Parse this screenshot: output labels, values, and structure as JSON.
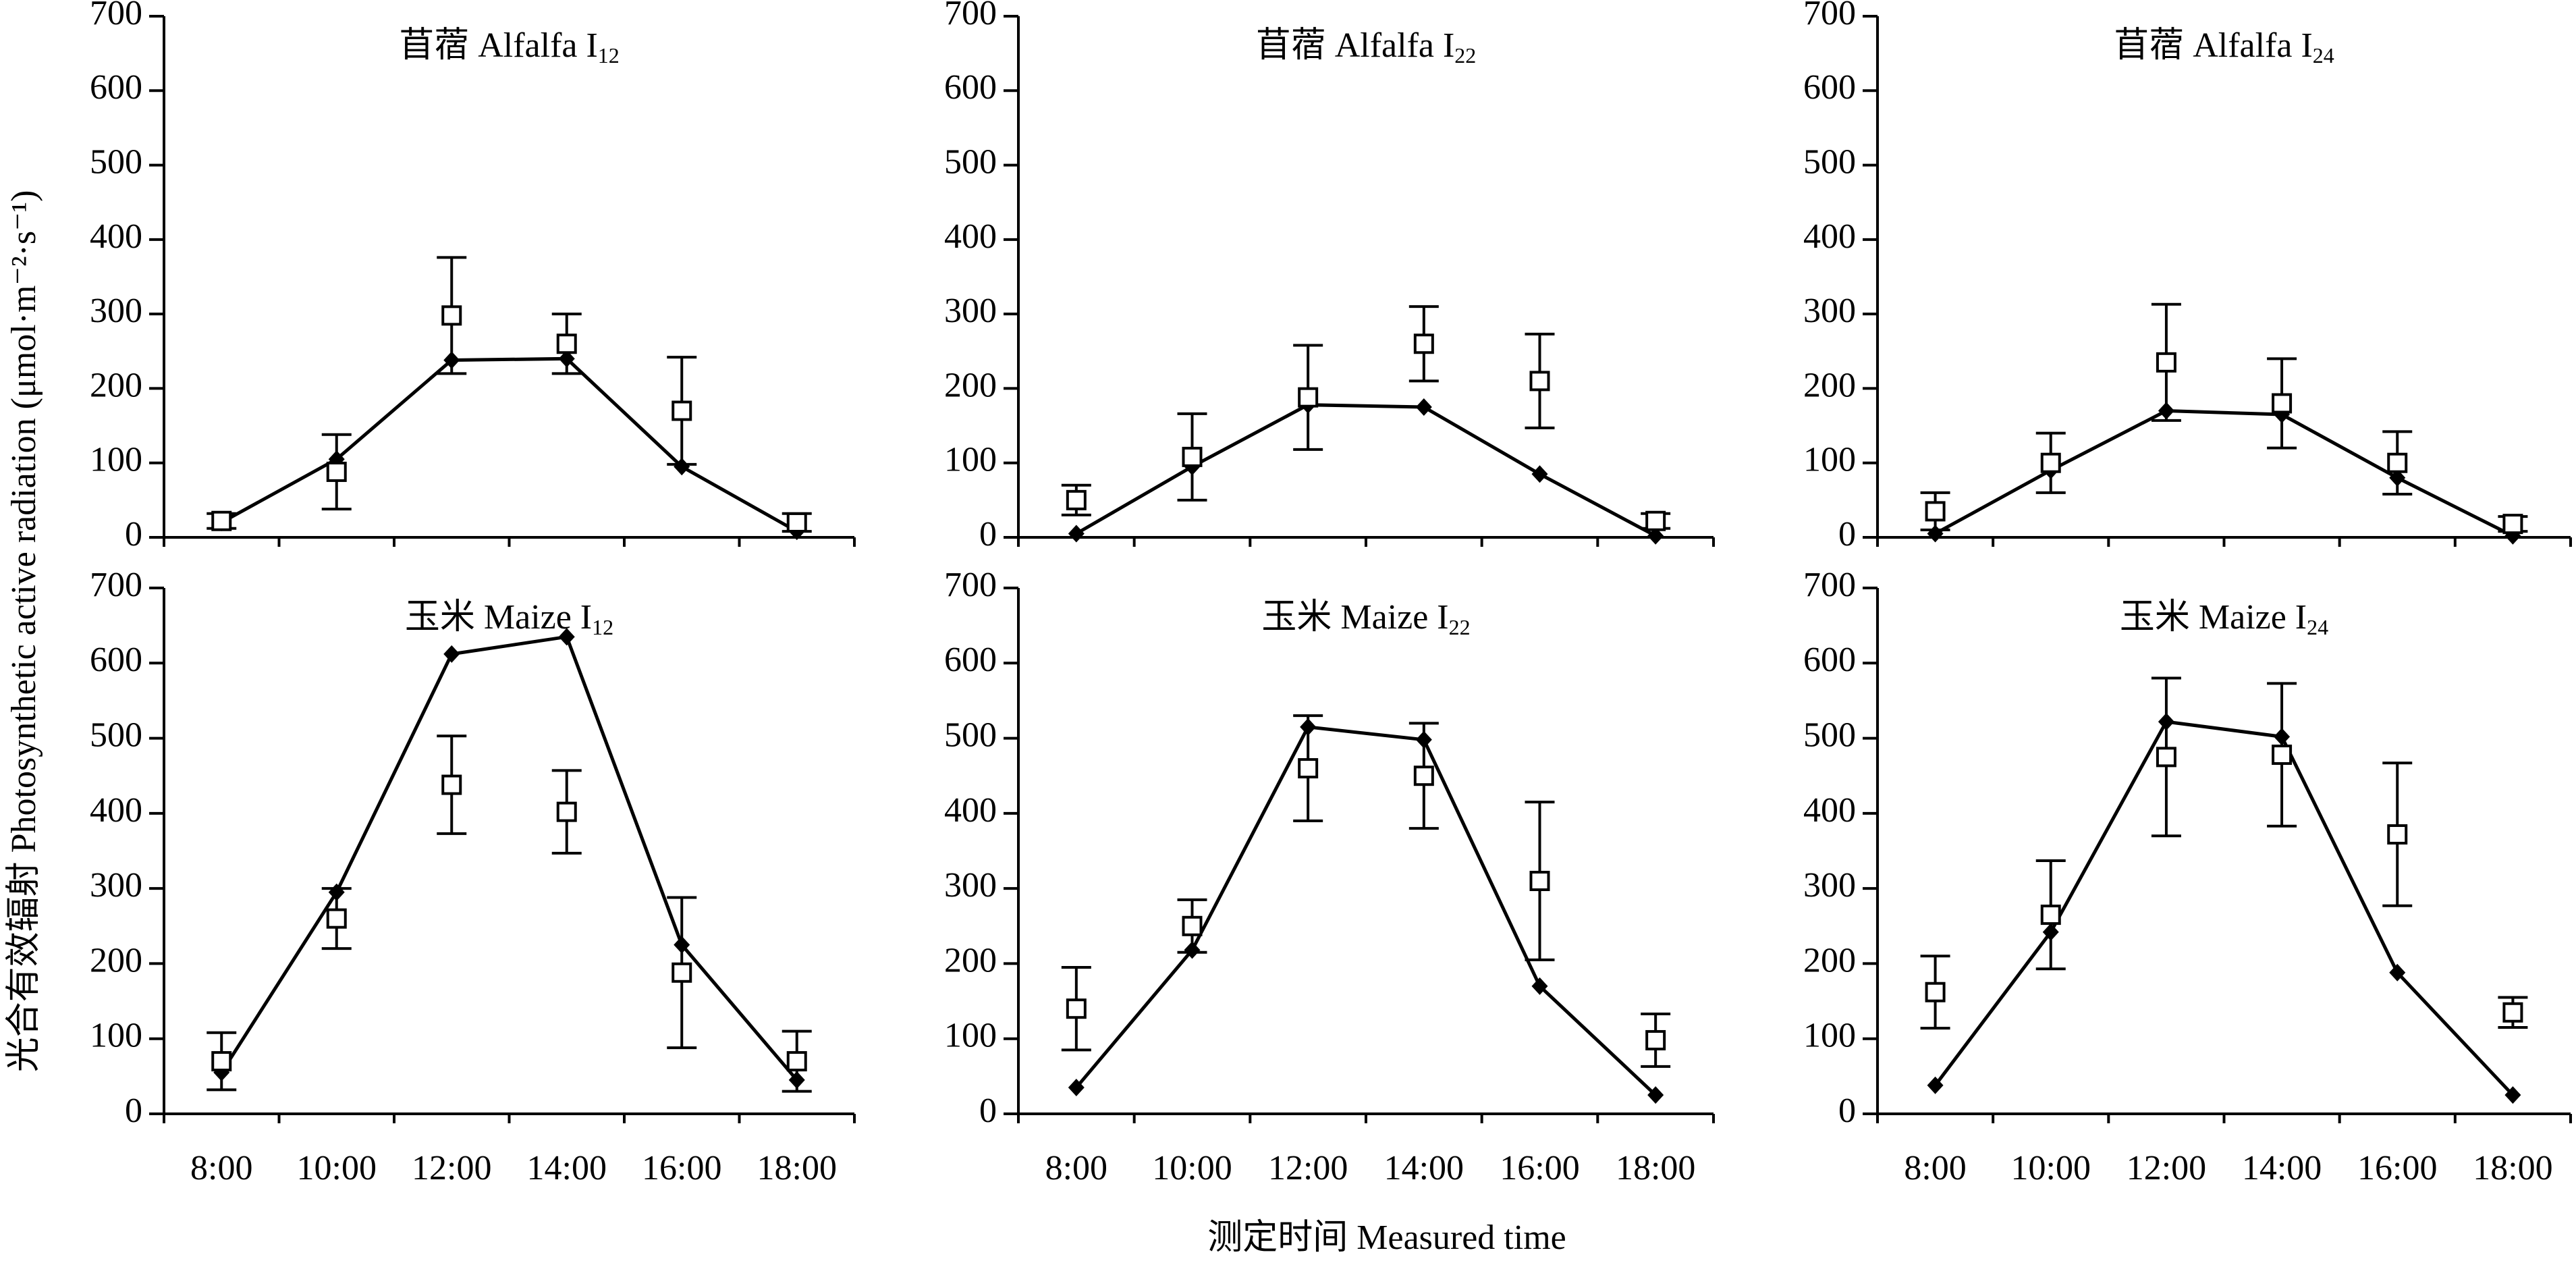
{
  "ylabel": "光合有效辐射 Photosynthetic active radiation (μmol·m⁻²·s⁻¹)",
  "xlabel": "测定时间 Measured time",
  "chart_data": [
    {
      "type": "line",
      "title": "苜蓿 Alfalfa I",
      "title_subscript": "12",
      "categories": [
        null,
        null,
        null,
        null,
        null,
        null
      ],
      "ylim": [
        0,
        700
      ],
      "yticks": [
        0,
        100,
        200,
        300,
        400,
        500,
        600,
        700
      ],
      "grid": false,
      "series": [
        {
          "color": "#000000",
          "marker": "diamond",
          "line": true,
          "values": [
            20,
            105,
            238,
            240,
            95,
            8
          ]
        },
        {
          "color": "#000000",
          "marker": "square",
          "line": false,
          "values": [
            22,
            88,
            298,
            260,
            170,
            20
          ],
          "errors": [
            10,
            50,
            78,
            40,
            72,
            12
          ]
        }
      ]
    },
    {
      "type": "line",
      "title": "苜蓿 Alfalfa I",
      "title_subscript": "22",
      "categories": [
        null,
        null,
        null,
        null,
        null,
        null
      ],
      "ylim": [
        0,
        700
      ],
      "yticks": [
        0,
        100,
        200,
        300,
        400,
        500,
        600,
        700
      ],
      "grid": false,
      "series": [
        {
          "color": "#000000",
          "marker": "diamond",
          "line": true,
          "values": [
            5,
            95,
            178,
            175,
            85,
            2
          ]
        },
        {
          "color": "#000000",
          "marker": "square",
          "line": false,
          "values": [
            50,
            108,
            188,
            260,
            210,
            22
          ],
          "errors": [
            20,
            58,
            70,
            50,
            63,
            10
          ]
        }
      ]
    },
    {
      "type": "line",
      "title": "苜蓿 Alfalfa I",
      "title_subscript": "24",
      "categories": [
        null,
        null,
        null,
        null,
        null,
        null
      ],
      "ylim": [
        0,
        700
      ],
      "yticks": [
        0,
        100,
        200,
        300,
        400,
        500,
        600,
        700
      ],
      "grid": false,
      "series": [
        {
          "color": "#000000",
          "marker": "diamond",
          "line": true,
          "values": [
            5,
            90,
            170,
            165,
            80,
            2
          ]
        },
        {
          "color": "#000000",
          "marker": "square",
          "line": false,
          "values": [
            35,
            100,
            235,
            180,
            100,
            18
          ],
          "errors": [
            25,
            40,
            78,
            60,
            42,
            10
          ]
        }
      ]
    },
    {
      "type": "line",
      "title": "玉米 Maize I",
      "title_subscript": "12",
      "categories": [
        "8:00",
        "10:00",
        "12:00",
        "14:00",
        "16:00",
        "18:00"
      ],
      "ylim": [
        0,
        700
      ],
      "yticks": [
        0,
        100,
        200,
        300,
        400,
        500,
        600,
        700
      ],
      "grid": false,
      "series": [
        {
          "color": "#000000",
          "marker": "diamond",
          "line": true,
          "values": [
            55,
            295,
            612,
            635,
            225,
            45
          ]
        },
        {
          "color": "#000000",
          "marker": "square",
          "line": false,
          "values": [
            70,
            260,
            438,
            402,
            188,
            70
          ],
          "errors": [
            38,
            40,
            65,
            55,
            100,
            40
          ]
        }
      ]
    },
    {
      "type": "line",
      "title": "玉米 Maize I",
      "title_subscript": "22",
      "categories": [
        "8:00",
        "10:00",
        "12:00",
        "14:00",
        "16:00",
        "18:00"
      ],
      "ylim": [
        0,
        700
      ],
      "yticks": [
        0,
        100,
        200,
        300,
        400,
        500,
        600,
        700
      ],
      "grid": false,
      "series": [
        {
          "color": "#000000",
          "marker": "diamond",
          "line": true,
          "values": [
            35,
            218,
            515,
            498,
            170,
            25
          ]
        },
        {
          "color": "#000000",
          "marker": "square",
          "line": false,
          "values": [
            140,
            250,
            460,
            450,
            310,
            98
          ],
          "errors": [
            55,
            35,
            70,
            70,
            105,
            35
          ]
        }
      ]
    },
    {
      "type": "line",
      "title": "玉米 Maize I",
      "title_subscript": "24",
      "categories": [
        "8:00",
        "10:00",
        "12:00",
        "14:00",
        "16:00",
        "18:00"
      ],
      "ylim": [
        0,
        700
      ],
      "yticks": [
        0,
        100,
        200,
        300,
        400,
        500,
        600,
        700
      ],
      "grid": false,
      "series": [
        {
          "color": "#000000",
          "marker": "diamond",
          "line": true,
          "values": [
            38,
            242,
            522,
            502,
            188,
            25
          ]
        },
        {
          "color": "#000000",
          "marker": "square",
          "line": false,
          "values": [
            162,
            265,
            475,
            478,
            372,
            135
          ],
          "errors": [
            48,
            72,
            105,
            95,
            95,
            20
          ]
        }
      ]
    }
  ]
}
